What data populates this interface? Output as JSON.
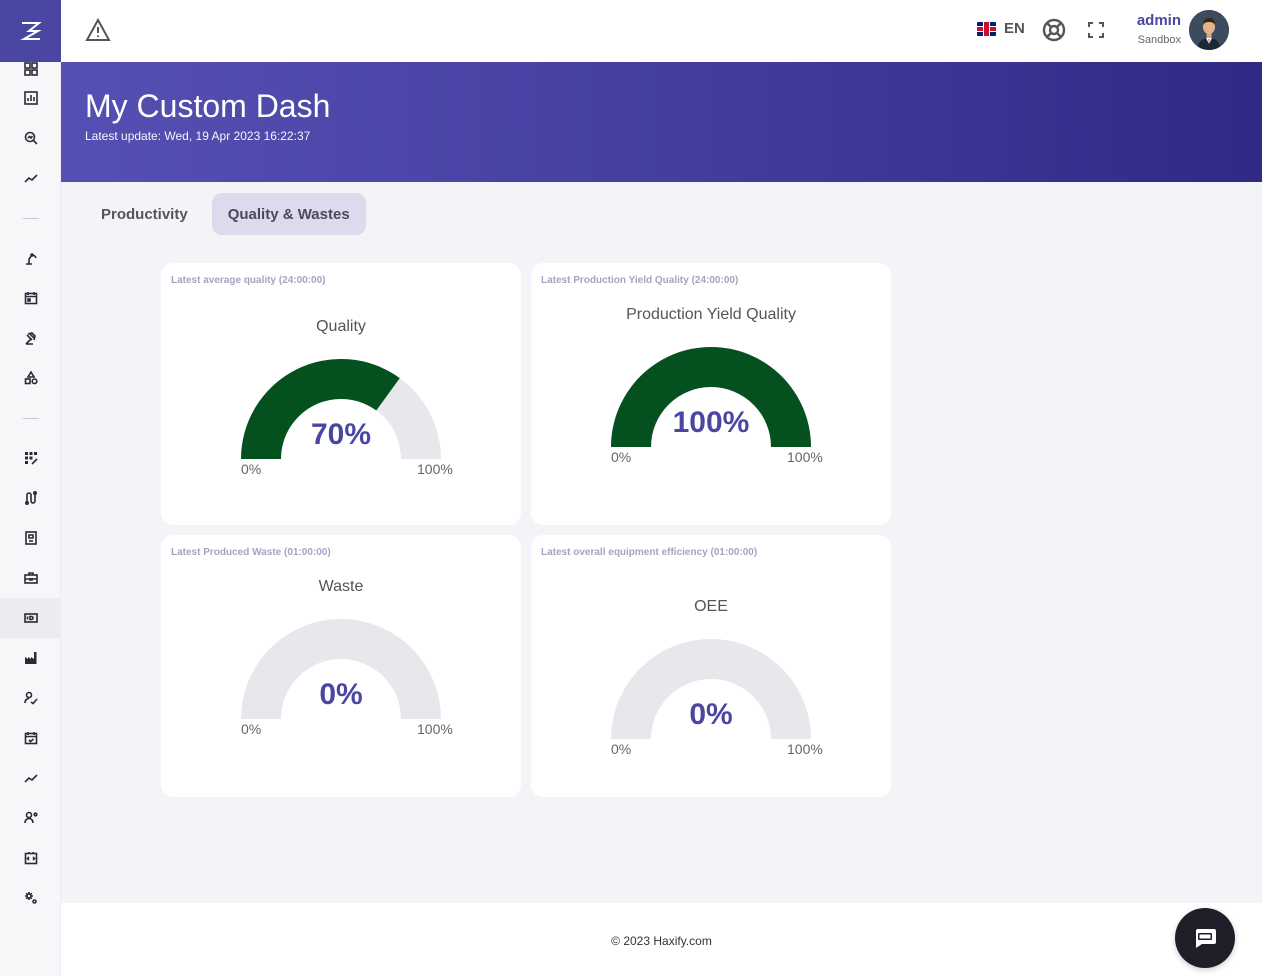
{
  "topbar": {
    "language": "EN",
    "user_name": "admin",
    "user_org": "Sandbox"
  },
  "banner": {
    "title": "My Custom Dash",
    "subtitle": "Latest update: Wed, 19 Apr 2023 16:22:37"
  },
  "tabs": [
    {
      "label": "Productivity",
      "active": false
    },
    {
      "label": "Quality & Wastes",
      "active": true
    }
  ],
  "cards": [
    {
      "card_title": "Latest average quality (24:00:00)",
      "gauge_title": "Quality",
      "value_text": "70%",
      "min": "0%",
      "max": "100%"
    },
    {
      "card_title": "Latest Production Yield Quality (24:00:00)",
      "gauge_title": "Production Yield Quality",
      "value_text": "100%",
      "min": "0%",
      "max": "100%"
    },
    {
      "card_title": "Latest Produced Waste (01:00:00)",
      "gauge_title": "Waste",
      "value_text": "0%",
      "min": "0%",
      "max": "100%"
    },
    {
      "card_title": "Latest overall equipment efficiency (01:00:00)",
      "gauge_title": "OEE",
      "value_text": "0%",
      "min": "0%",
      "max": "100%"
    }
  ],
  "chart_data": [
    {
      "type": "gauge",
      "title": "Quality",
      "value": 70,
      "range": [
        0,
        100
      ],
      "unit": "%"
    },
    {
      "type": "gauge",
      "title": "Production Yield Quality",
      "value": 100,
      "range": [
        0,
        100
      ],
      "unit": "%"
    },
    {
      "type": "gauge",
      "title": "Waste",
      "value": 0,
      "range": [
        0,
        100
      ],
      "unit": "%"
    },
    {
      "type": "gauge",
      "title": "OEE",
      "value": 0,
      "range": [
        0,
        100
      ],
      "unit": "%"
    }
  ],
  "colors": {
    "accent": "#4a47a3",
    "gauge_fill": "#05501f",
    "gauge_track": "#e6e8eb"
  },
  "sidebar_icons": [
    "dashboard-icon",
    "report-chart-icon",
    "search-analytics-icon",
    "trend-line-icon",
    "robot-arm-icon",
    "calendar-icon",
    "gavel-icon",
    "shapes-icon",
    "grid-dots-icon",
    "route-icon",
    "document-icon",
    "toolbox-icon",
    "id-card-icon",
    "factory-icon",
    "signature-icon",
    "calendar-check-icon",
    "trend-line-icon",
    "user-settings-icon",
    "code-icon",
    "settings-gears-icon"
  ],
  "footer": {
    "copyright": "© 2023 Haxify.com"
  }
}
